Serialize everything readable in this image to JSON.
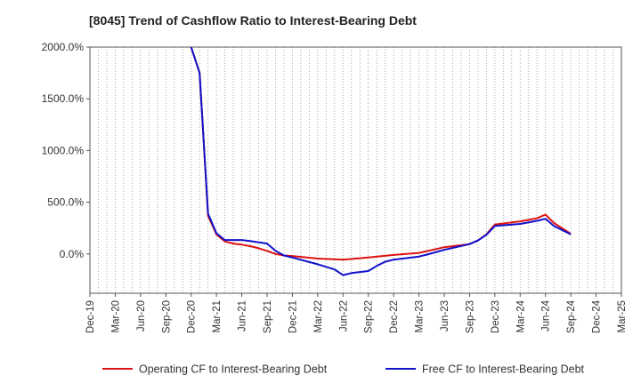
{
  "chart_data": {
    "type": "line",
    "title": "[8045]  Trend of Cashflow Ratio to Interest-Bearing Debt",
    "xlabel": "",
    "ylabel": "",
    "x_tick_labels": [
      "Dec-19",
      "Mar-20",
      "Jun-20",
      "Sep-20",
      "Dec-20",
      "Mar-21",
      "Jun-21",
      "Sep-21",
      "Dec-21",
      "Mar-22",
      "Jun-22",
      "Sep-22",
      "Dec-22",
      "Mar-23",
      "Jun-23",
      "Sep-23",
      "Dec-23",
      "Mar-24",
      "Jun-24",
      "Sep-24",
      "Dec-24",
      "Mar-25"
    ],
    "y_tick_labels": [
      "2000.0%",
      "1500.0%",
      "1000.0%",
      "500.0%",
      "0.0%"
    ],
    "y_ticks": [
      2000,
      1500,
      1000,
      500,
      0
    ],
    "ylim": [
      -380,
      2000
    ],
    "x_range": [
      "Dec-19",
      "Mar-25"
    ],
    "grid": {
      "vertical": "dotted",
      "horizontal": "none"
    },
    "legend": "bottom",
    "series": [
      {
        "name": "Operating CF to Interest-Bearing Debt",
        "color": "#dd1111",
        "points": [
          [
            "Dec-20",
            2000
          ],
          [
            "Jan-21",
            1750
          ],
          [
            "Feb-21",
            370
          ],
          [
            "Mar-21",
            190
          ],
          [
            "Apr-21",
            120
          ],
          [
            "May-21",
            100
          ],
          [
            "Jun-21",
            90
          ],
          [
            "Jul-21",
            75
          ],
          [
            "Aug-21",
            55
          ],
          [
            "Sep-21",
            30
          ],
          [
            "Oct-21",
            0
          ],
          [
            "Nov-21",
            -15
          ],
          [
            "Dec-21",
            -20
          ],
          [
            "Mar-22",
            -45
          ],
          [
            "Jun-22",
            -55
          ],
          [
            "Sep-22",
            -35
          ],
          [
            "Dec-22",
            -10
          ],
          [
            "Mar-23",
            10
          ],
          [
            "Jun-23",
            65
          ],
          [
            "Sep-23",
            95
          ],
          [
            "Oct-23",
            130
          ],
          [
            "Nov-23",
            190
          ],
          [
            "Dec-23",
            285
          ],
          [
            "Mar-24",
            315
          ],
          [
            "May-24",
            345
          ],
          [
            "Jun-24",
            380
          ],
          [
            "Jul-24",
            300
          ],
          [
            "Sep-24",
            195
          ]
        ]
      },
      {
        "name": "Free CF to Interest-Bearing Debt",
        "color": "#1111cc",
        "points": [
          [
            "Dec-20",
            2000
          ],
          [
            "Jan-21",
            1750
          ],
          [
            "Feb-21",
            390
          ],
          [
            "Mar-21",
            200
          ],
          [
            "Apr-21",
            135
          ],
          [
            "Jun-21",
            135
          ],
          [
            "Jul-21",
            125
          ],
          [
            "Sep-21",
            100
          ],
          [
            "Oct-21",
            30
          ],
          [
            "Nov-21",
            -15
          ],
          [
            "Dec-21",
            -35
          ],
          [
            "Mar-22",
            -100
          ],
          [
            "May-22",
            -150
          ],
          [
            "Jun-22",
            -205
          ],
          [
            "Jul-22",
            -185
          ],
          [
            "Sep-22",
            -165
          ],
          [
            "Oct-22",
            -115
          ],
          [
            "Nov-22",
            -75
          ],
          [
            "Dec-22",
            -55
          ],
          [
            "Mar-23",
            -25
          ],
          [
            "Apr-23",
            -5
          ],
          [
            "Jun-23",
            40
          ],
          [
            "Sep-23",
            95
          ],
          [
            "Oct-23",
            130
          ],
          [
            "Nov-23",
            185
          ],
          [
            "Dec-23",
            270
          ],
          [
            "Mar-24",
            290
          ],
          [
            "May-24",
            320
          ],
          [
            "Jun-24",
            340
          ],
          [
            "Jul-24",
            270
          ],
          [
            "Sep-24",
            190
          ]
        ]
      }
    ]
  }
}
